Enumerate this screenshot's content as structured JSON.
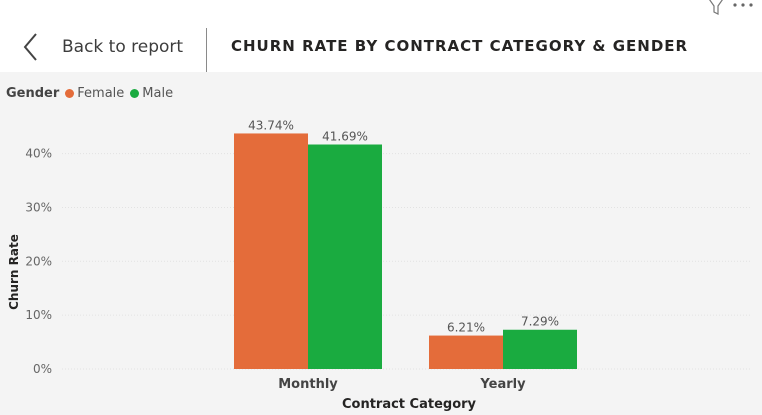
{
  "header": {
    "back_label": "Back to report",
    "title": "CHURN RATE BY CONTRACT CATEGORY & GENDER",
    "icons": [
      "filter-icon",
      "more-options-icon"
    ]
  },
  "legend": {
    "title": "Gender",
    "items": [
      {
        "label": "Female",
        "color": "#E46C3A"
      },
      {
        "label": "Male",
        "color": "#1AAB40"
      }
    ],
    "placement": "top-left"
  },
  "chart_data": {
    "type": "bar",
    "title": "CHURN RATE BY CONTRACT CATEGORY & GENDER",
    "xlabel": "Contract Category",
    "ylabel": "Churn Rate",
    "categories": [
      "Monthly",
      "Yearly"
    ],
    "series": [
      {
        "name": "Female",
        "color": "#E46C3A",
        "values": [
          43.74,
          6.21
        ],
        "labels": [
          "43.74%",
          "6.21%"
        ]
      },
      {
        "name": "Male",
        "color": "#1AAB40",
        "values": [
          41.69,
          7.29
        ],
        "labels": [
          "41.69%",
          "7.29%"
        ]
      }
    ],
    "yticks": [
      0,
      10,
      20,
      30,
      40
    ],
    "ytick_labels": [
      "0%",
      "10%",
      "20%",
      "30%",
      "40%"
    ],
    "ylim": [
      0,
      50
    ],
    "grid": true,
    "legend": "top-left"
  }
}
